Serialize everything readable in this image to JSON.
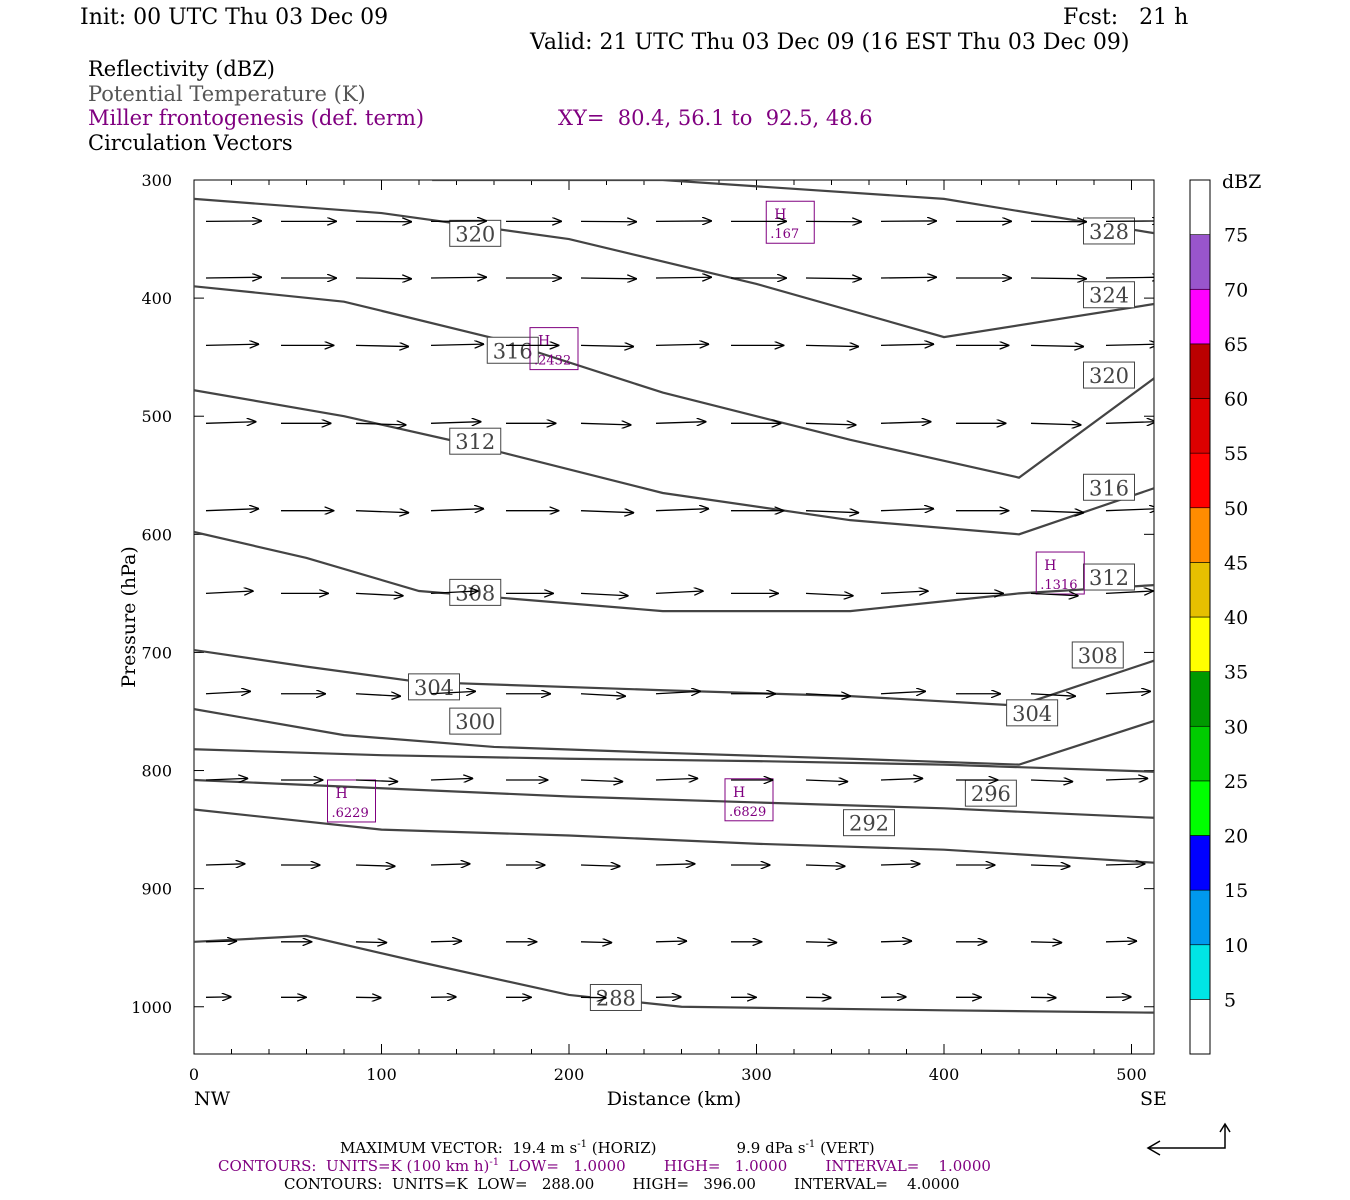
{
  "header": {
    "init": "Init: 00 UTC Thu 03 Dec 09",
    "fcst": "Fcst:   21 h",
    "valid": "Valid: 21 UTC Thu 03 Dec 09 (16 EST Thu 03 Dec 09)"
  },
  "fields": {
    "reflectivity": "Reflectivity (dBZ)",
    "theta": "Potential Temperature (K)",
    "miller": "Miller frontogenesis (def. term)",
    "xy": "XY=  80.4, 56.1 to  92.5, 48.6",
    "vectors": "Circulation Vectors"
  },
  "footer": {
    "max_vector_a": "MAXIMUM VECTOR:  19.4 m s",
    "max_vector_a_sup": "-1",
    "max_vector_b": " (HORIZ)",
    "max_vector_c": "9.9 dPa s",
    "max_vector_c_sup": "-1",
    "max_vector_d": " (VERT)",
    "contours1_a": "CONTOURS:  UNITS=K (100 km h)",
    "contours1_sup": "-1",
    "contours1_b": "  LOW=   1.0000        HIGH=   1.0000        INTERVAL=    1.0000",
    "contours2": "CONTOURS:  UNITS=K  LOW=   288.00        HIGH=   396.00        INTERVAL=    4.0000"
  },
  "colors": {
    "theta_line": "#444444",
    "frontogenesis": "#800080",
    "vector": "#000000"
  },
  "chart_data": {
    "type": "cross-section",
    "xlabel": "Distance (km)",
    "ylabel": "Pressure (hPa)",
    "xlim": [
      0,
      512
    ],
    "ylim": [
      1040,
      300
    ],
    "x_ticks": [
      0,
      100,
      200,
      300,
      400,
      500
    ],
    "y_ticks": [
      300,
      400,
      500,
      600,
      700,
      800,
      900,
      1000
    ],
    "x_end_labels": {
      "left": "NW",
      "right": "SE"
    },
    "colorbar": {
      "title": "dBZ",
      "levels": [
        5,
        10,
        15,
        20,
        25,
        30,
        35,
        40,
        45,
        50,
        55,
        60,
        65,
        70,
        75
      ],
      "colors": [
        "#ffffff",
        "#00e5e5",
        "#0099ee",
        "#0000ff",
        "#00ff00",
        "#00cc00",
        "#009900",
        "#ffff00",
        "#e6c000",
        "#ff8c00",
        "#ff0000",
        "#dd0000",
        "#bb0000",
        "#ff00ff",
        "#9955cc",
        "#ffffff"
      ]
    },
    "theta_contours": [
      {
        "value": "328",
        "points": [
          [
            127,
            300
          ],
          [
            250,
            300
          ],
          [
            400,
            316
          ],
          [
            512,
            345
          ]
        ],
        "label_at": [
          488,
          344
        ]
      },
      {
        "value": "324",
        "points": [
          [
            0,
            316
          ],
          [
            100,
            328
          ],
          [
            200,
            350
          ],
          [
            300,
            388
          ],
          [
            400,
            433
          ],
          [
            512,
            405
          ]
        ],
        "label_at": [
          488,
          398
        ]
      },
      {
        "value": "320",
        "points": [
          [
            0,
            390
          ],
          [
            80,
            403
          ],
          [
            160,
            434
          ],
          [
            250,
            480
          ],
          [
            350,
            520
          ],
          [
            440,
            552
          ],
          [
            512,
            468
          ]
        ],
        "label_at": [
          488,
          466
        ]
      },
      {
        "value": "316",
        "points": [
          [
            0,
            478
          ],
          [
            80,
            500
          ],
          [
            150,
            525
          ],
          [
            250,
            565
          ],
          [
            350,
            588
          ],
          [
            440,
            600
          ],
          [
            512,
            561
          ]
        ],
        "label_at": [
          488,
          561
        ]
      },
      {
        "value": "312",
        "points": [
          [
            0,
            598
          ],
          [
            60,
            620
          ],
          [
            120,
            648
          ],
          [
            250,
            665
          ],
          [
            350,
            665
          ],
          [
            440,
            650
          ],
          [
            512,
            643
          ]
        ],
        "label_at": [
          488,
          637
        ]
      },
      {
        "value": "308",
        "points": [
          [
            0,
            698
          ],
          [
            60,
            712
          ],
          [
            120,
            725
          ],
          [
            250,
            732
          ],
          [
            350,
            737
          ],
          [
            440,
            745
          ],
          [
            512,
            707
          ]
        ],
        "label_at": [
          482,
          703
        ]
      },
      {
        "value": "304",
        "points": [
          [
            0,
            748
          ],
          [
            80,
            770
          ],
          [
            160,
            780
          ],
          [
            250,
            785
          ],
          [
            350,
            790
          ],
          [
            440,
            795
          ],
          [
            512,
            758
          ]
        ],
        "label_at": [
          447,
          752
        ]
      },
      {
        "value": "300",
        "points": [
          [
            0,
            782
          ],
          [
            100,
            787
          ],
          [
            200,
            790
          ],
          [
            300,
            792
          ],
          [
            400,
            795
          ],
          [
            512,
            801
          ]
        ],
        "label_at": [
          150,
          759
        ]
      },
      {
        "value": "296",
        "points": [
          [
            0,
            808
          ],
          [
            100,
            815
          ],
          [
            200,
            822
          ],
          [
            300,
            827
          ],
          [
            400,
            832
          ],
          [
            512,
            840
          ]
        ],
        "label_at": [
          425,
          820
        ]
      },
      {
        "value": "292",
        "points": [
          [
            0,
            833
          ],
          [
            100,
            850
          ],
          [
            200,
            855
          ],
          [
            300,
            862
          ],
          [
            400,
            867
          ],
          [
            512,
            878
          ]
        ],
        "label_at": [
          360,
          845
        ]
      },
      {
        "value": "288",
        "points": [
          [
            0,
            945
          ],
          [
            60,
            940
          ],
          [
            120,
            962
          ],
          [
            200,
            990
          ],
          [
            260,
            1000
          ],
          [
            400,
            1003
          ],
          [
            512,
            1005
          ]
        ],
        "label_at": [
          225,
          993
        ]
      }
    ],
    "theta_label_texts": [
      {
        "text": "320",
        "at": [
          150,
          346
        ]
      },
      {
        "text": "316",
        "at": [
          170,
          445
        ]
      },
      {
        "text": "312",
        "at": [
          150,
          522
        ]
      },
      {
        "text": "308",
        "at": [
          150,
          650
        ]
      },
      {
        "text": "304",
        "at": [
          128,
          730
        ]
      }
    ],
    "frontogenesis_highs": [
      {
        "label": "H",
        "value": ".167",
        "at": [
          318,
          340
        ]
      },
      {
        "label": "H",
        "value": ".2432",
        "at": [
          192,
          447
        ]
      },
      {
        "label": "H",
        "value": ".1316",
        "at": [
          462,
          637
        ]
      },
      {
        "label": "H",
        "value": ".6229",
        "at": [
          84,
          830
        ]
      },
      {
        "label": "H",
        "value": ".6829",
        "at": [
          296,
          829
        ]
      }
    ],
    "vectors": {
      "x": [
        0,
        40,
        80,
        120,
        160,
        200,
        240,
        280,
        320,
        360,
        400,
        440,
        480
      ],
      "pressure": [
        335,
        383,
        440,
        506,
        580,
        650,
        735,
        808,
        880,
        945,
        992
      ],
      "u": [
        1.0,
        1.0,
        0.95,
        0.9,
        0.95,
        0.85,
        0.8,
        0.75,
        0.7,
        0.55,
        0.45
      ],
      "w": [
        0.05,
        0.1,
        0.15,
        0.2,
        0.25,
        0.3,
        0.3,
        0.2,
        0.15,
        0.1,
        0.05
      ]
    }
  }
}
